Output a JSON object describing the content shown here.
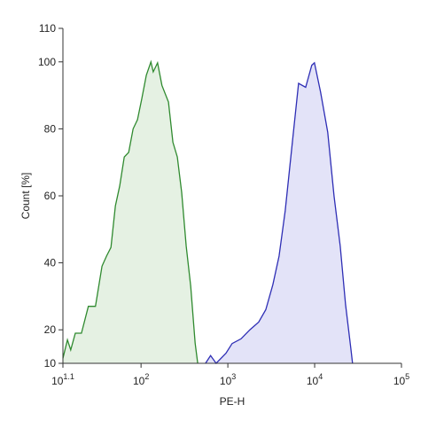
{
  "chart_data": {
    "type": "histogram-overlay",
    "xlabel": "PE-H",
    "ylabel": "Count [%]",
    "xscale": "log",
    "xlim": [
      12.59,
      100000
    ],
    "ylim": [
      10,
      110
    ],
    "xticks": [
      {
        "value": 12.59,
        "label": "10",
        "exponent": "1.1"
      },
      {
        "value": 100,
        "label": "10",
        "exponent": "2"
      },
      {
        "value": 1000,
        "label": "10",
        "exponent": "3"
      },
      {
        "value": 10000,
        "label": "10",
        "exponent": "4"
      },
      {
        "value": 100000,
        "label": "10",
        "exponent": "5"
      }
    ],
    "yticks": [
      10,
      20,
      40,
      60,
      80,
      100,
      110
    ],
    "series": [
      {
        "color": "#2f8a2f",
        "fill": "#e5f1e3",
        "x": [
          12.6,
          14.2,
          15.5,
          17.5,
          20.6,
          24.7,
          29.8,
          35.5,
          40,
          45,
          50.6,
          56.8,
          64,
          72,
          81,
          91,
          102,
          115,
          130,
          138,
          155,
          174,
          207,
          233,
          262,
          294,
          331,
          373,
          420,
          450
        ],
        "values": [
          11.5,
          17,
          14,
          19,
          19,
          27,
          27,
          39,
          42,
          44.6,
          57,
          63,
          71.6,
          73,
          80,
          82.7,
          89,
          96,
          100,
          97,
          99.7,
          93,
          88,
          76,
          71.6,
          61,
          45,
          33,
          16,
          10
        ]
      },
      {
        "color": "#2e2eb5",
        "fill": "#e3e3f8",
        "x": [
          553,
          632,
          733,
          950,
          1120,
          1416,
          1791,
          2265,
          2733,
          3300,
          3890,
          4580,
          5530,
          6520,
          7870,
          9270,
          9950,
          11700,
          14150,
          16700,
          19700,
          22700,
          26100,
          27300
        ],
        "values": [
          10,
          12.3,
          10,
          13,
          15.9,
          17.3,
          20,
          22.3,
          26,
          33.5,
          42,
          55.5,
          76,
          93.6,
          92.4,
          99,
          99.7,
          91,
          79,
          60,
          45,
          27.6,
          14.4,
          10
        ]
      }
    ]
  }
}
